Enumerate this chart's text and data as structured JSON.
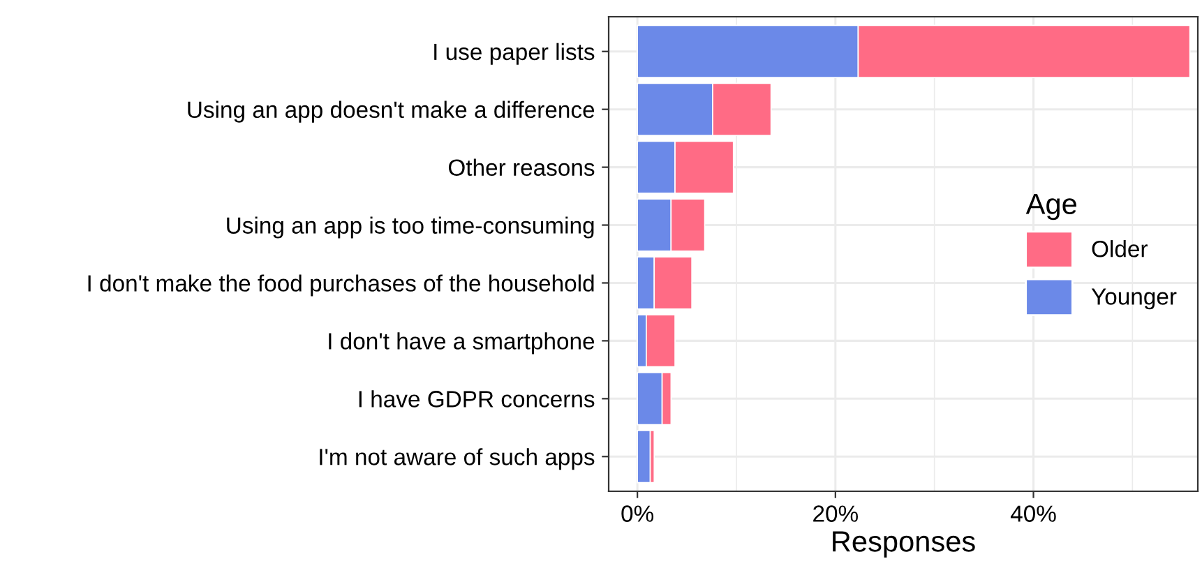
{
  "chart_data": {
    "type": "bar",
    "orientation": "horizontal",
    "stacked": true,
    "categories": [
      "I use paper lists",
      "Using an app doesn't make a difference",
      "Other reasons",
      "Using an app is too time-consuming",
      "I don't make the food purchases of the household",
      "I don't have a smartphone",
      "I have GDPR concerns",
      "I'm not aware of such apps"
    ],
    "series": [
      {
        "name": "Younger",
        "color": "#6b89e8",
        "values": [
          22.3,
          7.6,
          3.8,
          3.4,
          1.7,
          0.9,
          2.5,
          1.3
        ]
      },
      {
        "name": "Older",
        "color": "#ff6b85",
        "values": [
          33.5,
          5.9,
          5.9,
          3.4,
          3.8,
          2.9,
          0.9,
          0.4
        ]
      }
    ],
    "xlabel": "Responses",
    "legend_title": "Age",
    "legend": "center right",
    "grid": true,
    "xlim": [
      -2.9,
      56.6
    ],
    "xticks": [
      {
        "value": 0,
        "label": "0%"
      },
      {
        "value": 10,
        "label": null
      },
      {
        "value": 20,
        "label": "20%"
      },
      {
        "value": 30,
        "label": null
      },
      {
        "value": 40,
        "label": "40%"
      },
      {
        "value": 50,
        "label": null
      }
    ]
  }
}
